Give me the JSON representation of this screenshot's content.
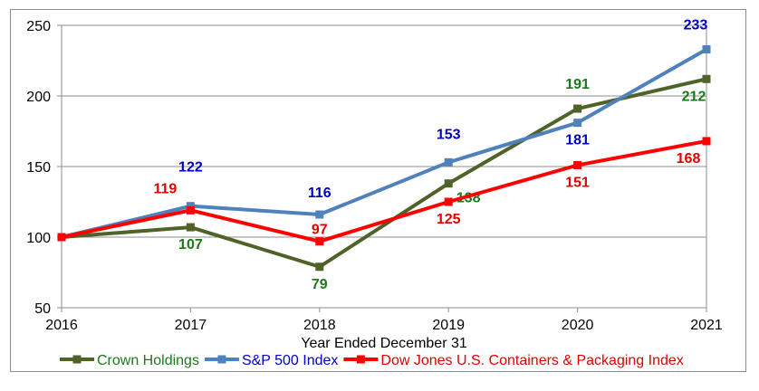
{
  "chart_data": {
    "type": "line",
    "xlabel": "Year Ended December 31",
    "ylabel": "",
    "x": [
      "2016",
      "2017",
      "2018",
      "2019",
      "2020",
      "2021"
    ],
    "ylim": [
      50,
      250
    ],
    "yticks": [
      "50",
      "100",
      "150",
      "200",
      "250"
    ],
    "grid": true,
    "legend_position": "bottom",
    "series": [
      {
        "name": "Crown Holdings",
        "values": [
          100,
          107,
          79,
          138,
          191,
          212
        ],
        "labels": [
          "",
          "107",
          "79",
          "138",
          "191",
          "212"
        ],
        "color": "#4f6228",
        "label_color": "#1a7a1a"
      },
      {
        "name": "S&P 500 Index",
        "values": [
          100,
          122,
          116,
          153,
          181,
          233
        ],
        "labels": [
          "",
          "122",
          "116",
          "153",
          "181",
          "233"
        ],
        "color": "#4f81bd",
        "label_color": "#0000c0"
      },
      {
        "name": "Dow Jones U.S. Containers & Packaging Index",
        "values": [
          100,
          119,
          97,
          125,
          151,
          168
        ],
        "labels": [
          "",
          "119",
          "97",
          "125",
          "151",
          "168"
        ],
        "color": "#ff0000",
        "label_color": "#e00000"
      }
    ]
  }
}
